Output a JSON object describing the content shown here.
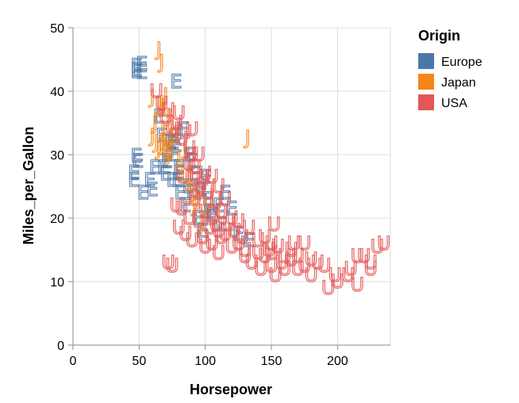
{
  "chart_data": {
    "type": "scatter",
    "xlabel": "Horsepower",
    "ylabel": "Miles_per_Gallon",
    "xlim": [
      0,
      240
    ],
    "ylim": [
      0,
      50
    ],
    "x_ticks": [
      0,
      50,
      100,
      150,
      200
    ],
    "y_ticks": [
      0,
      10,
      20,
      30,
      40,
      50
    ],
    "grid": true,
    "legend": {
      "title": "Origin",
      "placement": "right"
    },
    "series": [
      {
        "name": "Europe",
        "color": "#4c78a8",
        "glyph": "E",
        "points": [
          [
            48,
            43.1
          ],
          [
            48,
            43.4
          ],
          [
            48,
            44.0
          ],
          [
            52,
            44.3
          ],
          [
            52,
            43.0
          ],
          [
            46,
            26.0
          ],
          [
            46,
            27.2
          ],
          [
            48,
            29.8
          ],
          [
            49,
            29.0
          ],
          [
            53,
            24.0
          ],
          [
            58,
            26.0
          ],
          [
            60,
            24.5
          ],
          [
            62,
            28.0
          ],
          [
            65,
            36.0
          ],
          [
            67,
            33.0
          ],
          [
            70,
            27.0
          ],
          [
            71,
            30.5
          ],
          [
            71,
            29.0
          ],
          [
            74,
            31.9
          ],
          [
            75,
            26.0
          ],
          [
            76,
            30.0
          ],
          [
            77,
            33.0
          ],
          [
            78,
            31.5
          ],
          [
            80,
            28.0
          ],
          [
            81,
            24.0
          ],
          [
            83,
            34.0
          ],
          [
            85,
            22.0
          ],
          [
            87,
            25.0
          ],
          [
            88,
            30.0
          ],
          [
            90,
            29.0
          ],
          [
            92,
            27.0
          ],
          [
            95,
            20.0
          ],
          [
            97,
            24.5
          ],
          [
            100,
            26.5
          ],
          [
            102,
            23.0
          ],
          [
            105,
            20.5
          ],
          [
            110,
            22.0
          ],
          [
            112,
            19.0
          ],
          [
            115,
            24.0
          ],
          [
            120,
            21.5
          ],
          [
            125,
            17.5
          ],
          [
            133,
            16.5
          ],
          [
            78,
            41.5
          ],
          [
            80,
            27.2
          ],
          [
            68,
            28.0
          ],
          [
            74,
            32.0
          ],
          [
            79,
            26.0
          ],
          [
            90,
            24.3
          ],
          [
            98,
            18.0
          ],
          [
            103,
            21.0
          ]
        ]
      },
      {
        "name": "Japan",
        "color": "#f58518",
        "glyph": "J",
        "points": [
          [
            65,
            46.6
          ],
          [
            67,
            44.6
          ],
          [
            60,
            39.1
          ],
          [
            65,
            38.0
          ],
          [
            67,
            38.1
          ],
          [
            68,
            37.7
          ],
          [
            70,
            39.4
          ],
          [
            72,
            36.1
          ],
          [
            75,
            35.0
          ],
          [
            60,
            33.0
          ],
          [
            63,
            32.0
          ],
          [
            65,
            31.0
          ],
          [
            67,
            31.6
          ],
          [
            68,
            34.0
          ],
          [
            69,
            32.4
          ],
          [
            70,
            31.5
          ],
          [
            72,
            30.0
          ],
          [
            74,
            32.8
          ],
          [
            75,
            31.0
          ],
          [
            78,
            33.5
          ],
          [
            80,
            29.5
          ],
          [
            83,
            27.5
          ],
          [
            88,
            27.0
          ],
          [
            90,
            24.0
          ],
          [
            92,
            22.0
          ],
          [
            94,
            24.5
          ],
          [
            95,
            23.0
          ],
          [
            97,
            19.0
          ],
          [
            100,
            22.0
          ],
          [
            105,
            23.5
          ],
          [
            110,
            21.0
          ],
          [
            132,
            32.7
          ],
          [
            62,
            35.0
          ],
          [
            72,
            31.0
          ],
          [
            85,
            31.0
          ],
          [
            88,
            26.0
          ]
        ]
      },
      {
        "name": "USA",
        "color": "#e45756",
        "glyph": "U",
        "points": [
          [
            63,
            40.0
          ],
          [
            67,
            38.0
          ],
          [
            70,
            36.0
          ],
          [
            72,
            37.0
          ],
          [
            75,
            34.0
          ],
          [
            78,
            35.0
          ],
          [
            80,
            36.5
          ],
          [
            82,
            32.5
          ],
          [
            85,
            33.5
          ],
          [
            88,
            31.0
          ],
          [
            90,
            34.0
          ],
          [
            92,
            28.0
          ],
          [
            95,
            30.0
          ],
          [
            98,
            26.0
          ],
          [
            100,
            27.0
          ],
          [
            102,
            24.0
          ],
          [
            105,
            26.5
          ],
          [
            105,
            20.0
          ],
          [
            108,
            22.5
          ],
          [
            110,
            18.0
          ],
          [
            110,
            25.0
          ],
          [
            112,
            21.0
          ],
          [
            115,
            17.5
          ],
          [
            115,
            23.0
          ],
          [
            118,
            19.0
          ],
          [
            120,
            15.5
          ],
          [
            120,
            20.0
          ],
          [
            122,
            18.0
          ],
          [
            125,
            16.0
          ],
          [
            125,
            19.5
          ],
          [
            128,
            17.0
          ],
          [
            130,
            15.0
          ],
          [
            130,
            14.0
          ],
          [
            133,
            18.5
          ],
          [
            135,
            13.0
          ],
          [
            140,
            16.5
          ],
          [
            140,
            14.5
          ],
          [
            142,
            12.0
          ],
          [
            145,
            17.0
          ],
          [
            145,
            14.0
          ],
          [
            148,
            15.0
          ],
          [
            150,
            12.5
          ],
          [
            150,
            14.5
          ],
          [
            150,
            16.0
          ],
          [
            152,
            19.0
          ],
          [
            153,
            11.0
          ],
          [
            155,
            15.5
          ],
          [
            158,
            13.0
          ],
          [
            160,
            14.0
          ],
          [
            160,
            12.0
          ],
          [
            165,
            15.0
          ],
          [
            165,
            13.5
          ],
          [
            167,
            16.0
          ],
          [
            170,
            12.0
          ],
          [
            170,
            14.0
          ],
          [
            175,
            12.5
          ],
          [
            175,
            16.0
          ],
          [
            180,
            13.5
          ],
          [
            180,
            11.0
          ],
          [
            185,
            13.0
          ],
          [
            190,
            12.5
          ],
          [
            193,
            9.0
          ],
          [
            198,
            11.0
          ],
          [
            200,
            10.0
          ],
          [
            208,
            11.0
          ],
          [
            210,
            12.0
          ],
          [
            215,
            14.0
          ],
          [
            215,
            9.5
          ],
          [
            220,
            14.0
          ],
          [
            225,
            12.0
          ],
          [
            225,
            13.0
          ],
          [
            230,
            15.5
          ],
          [
            235,
            16.0
          ],
          [
            78,
            22.0
          ],
          [
            80,
            18.5
          ],
          [
            82,
            21.5
          ],
          [
            85,
            17.5
          ],
          [
            88,
            20.0
          ],
          [
            90,
            16.5
          ],
          [
            92,
            23.0
          ],
          [
            95,
            19.5
          ],
          [
            96,
            25.0
          ],
          [
            98,
            17.0
          ],
          [
            100,
            21.0
          ],
          [
            100,
            15.5
          ],
          [
            103,
            18.5
          ],
          [
            105,
            16.0
          ],
          [
            108,
            19.0
          ],
          [
            110,
            14.5
          ],
          [
            112,
            17.0
          ],
          [
            72,
            13.0
          ],
          [
            75,
            12.5
          ],
          [
            83,
            26.5
          ],
          [
            88,
            28.5
          ],
          [
            90,
            30.0
          ],
          [
            93,
            26.5
          ],
          [
            95,
            24.0
          ]
        ]
      }
    ]
  }
}
